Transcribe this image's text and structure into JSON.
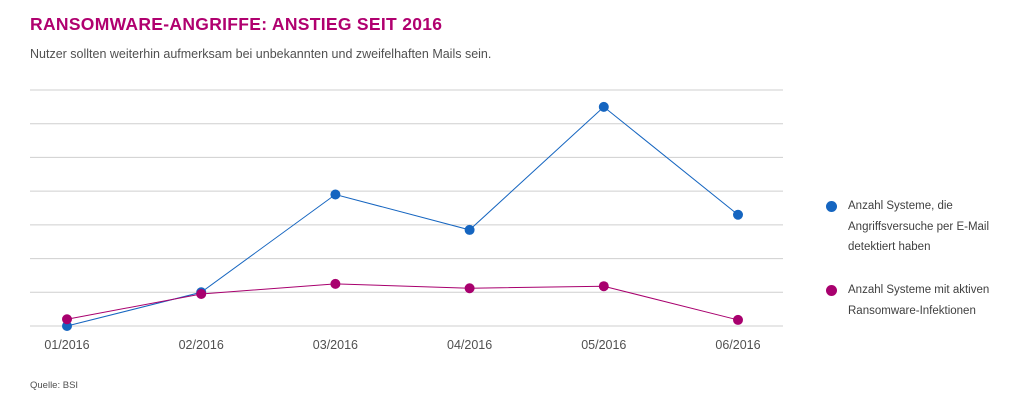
{
  "chart_data": {
    "type": "line",
    "title": "RANSOMWARE-ANGRIFFE: ANSTIEG SEIT 2016",
    "subtitle": "Nutzer sollten weiterhin aufmerksam bei unbekannten und zweifelhaften Mails sein.",
    "categories": [
      "01/2016",
      "02/2016",
      "03/2016",
      "04/2016",
      "05/2016",
      "06/2016"
    ],
    "ylim": [
      0,
      7
    ],
    "series": [
      {
        "name": "Anzahl Systeme, die Angriffsversuche per E-Mail detektiert haben",
        "color": "#1565c0",
        "values": [
          0.0,
          1.0,
          3.9,
          2.85,
          6.5,
          3.3
        ]
      },
      {
        "name": "Anzahl Systeme mit aktiven Ransomware-Infektionen",
        "color": "#a8006e",
        "values": [
          0.2,
          0.95,
          1.25,
          1.12,
          1.18,
          0.18
        ]
      }
    ],
    "source": "Quelle: BSI"
  },
  "colors": {
    "title": "#b0006f",
    "grid": "#cfcfcf"
  }
}
